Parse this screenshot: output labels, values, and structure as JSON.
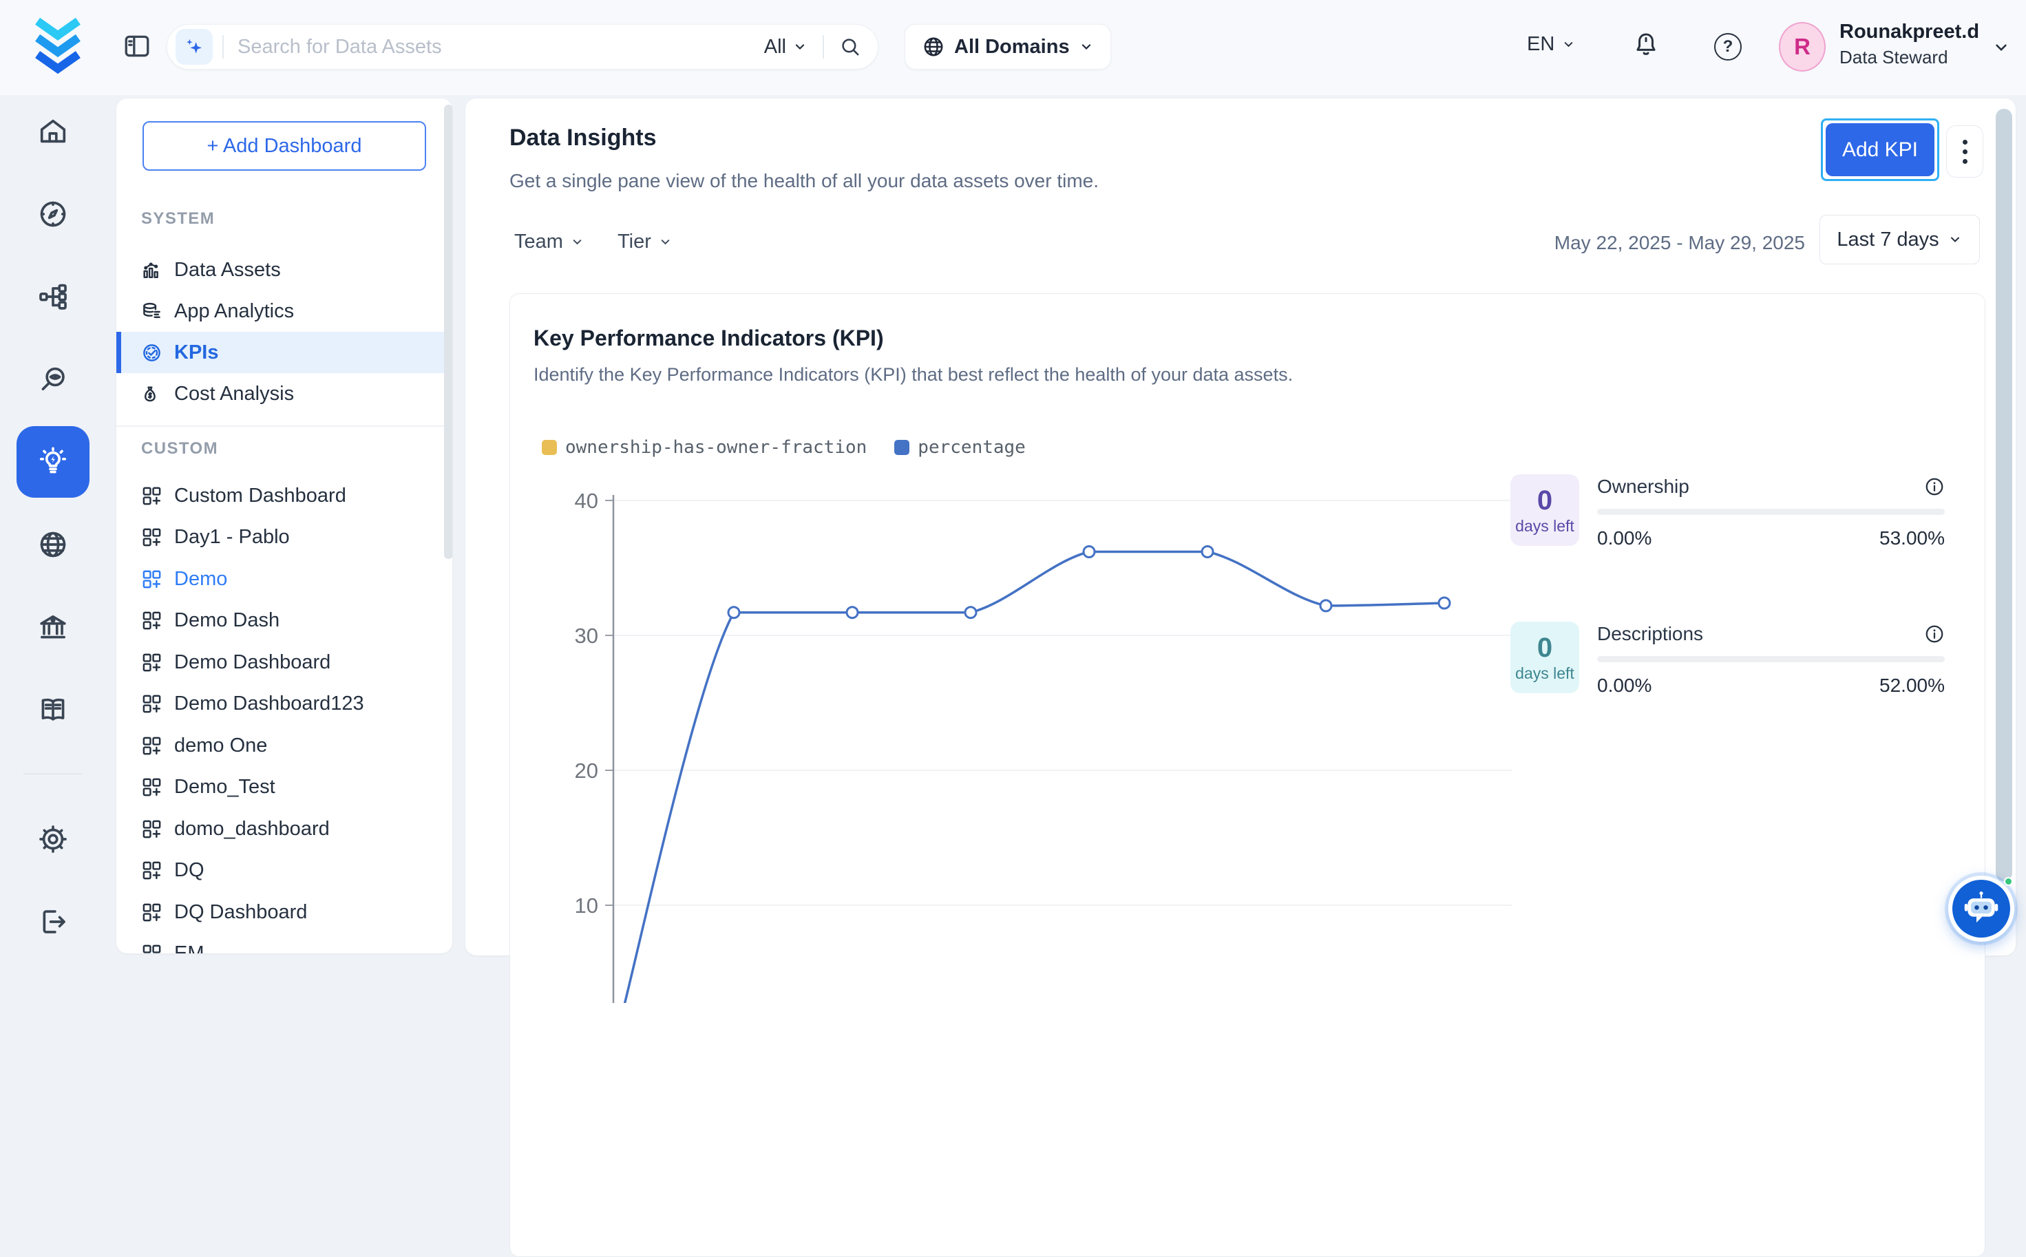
{
  "topbar": {
    "search": {
      "placeholder": "Search for Data Assets",
      "scope_label": "All"
    },
    "domains_button_label": "All Domains",
    "language_label": "EN",
    "help_label": "?",
    "user": {
      "initial": "R",
      "name": "Rounakpreet.d",
      "role": "Data Steward"
    }
  },
  "rail": {
    "top_items": [
      {
        "id": "home",
        "icon": "home-icon"
      },
      {
        "id": "explore",
        "icon": "compass-icon"
      },
      {
        "id": "lineage",
        "icon": "lineage-icon"
      },
      {
        "id": "observability",
        "icon": "observability-icon"
      },
      {
        "id": "insights",
        "icon": "insights-icon",
        "active": true
      },
      {
        "id": "domains",
        "icon": "globe-icon"
      },
      {
        "id": "govern",
        "icon": "bank-icon"
      },
      {
        "id": "learning",
        "icon": "book-icon"
      }
    ],
    "bottom_items": [
      {
        "id": "settings",
        "icon": "gear-icon"
      },
      {
        "id": "logout",
        "icon": "logout-icon"
      }
    ]
  },
  "sidebar": {
    "add_dashboard_label": "+ Add Dashboard",
    "sections": [
      {
        "label": "SYSTEM",
        "items": [
          {
            "label": "Data Assets",
            "icon": "bar-chart-icon"
          },
          {
            "label": "App Analytics",
            "icon": "database-icon"
          },
          {
            "label": "KPIs",
            "icon": "gauge-icon",
            "active": true
          },
          {
            "label": "Cost Analysis",
            "icon": "money-bag-icon"
          }
        ]
      },
      {
        "label": "CUSTOM",
        "items": [
          {
            "label": "Custom Dashboard",
            "icon": "dashboard-grid-icon"
          },
          {
            "label": "Day1 - Pablo",
            "icon": "dashboard-grid-icon"
          },
          {
            "label": "Demo",
            "icon": "dashboard-grid-icon",
            "highlighted": true
          },
          {
            "label": "Demo Dash",
            "icon": "dashboard-grid-icon"
          },
          {
            "label": "Demo Dashboard",
            "icon": "dashboard-grid-icon"
          },
          {
            "label": "Demo Dashboard123",
            "icon": "dashboard-grid-icon"
          },
          {
            "label": "demo One",
            "icon": "dashboard-grid-icon"
          },
          {
            "label": "Demo_Test",
            "icon": "dashboard-grid-icon"
          },
          {
            "label": "domo_dashboard",
            "icon": "dashboard-grid-icon"
          },
          {
            "label": "DQ",
            "icon": "dashboard-grid-icon"
          },
          {
            "label": "DQ Dashboard",
            "icon": "dashboard-grid-icon"
          },
          {
            "label": "EM",
            "icon": "dashboard-grid-icon",
            "clipped": true
          }
        ]
      }
    ]
  },
  "main": {
    "title": "Data Insights",
    "subtitle": "Get a single pane view of the health of all your data assets over time.",
    "add_kpi_label": "Add KPI",
    "filters": {
      "team_label": "Team",
      "tier_label": "Tier",
      "date_range": "May 22, 2025 - May 29, 2025",
      "range_selector_label": "Last 7 days"
    }
  },
  "kpi_card": {
    "title": "Key Performance Indicators (KPI)",
    "subtitle": "Identify the Key Performance Indicators (KPI) that best reflect the health of your data assets."
  },
  "chart_data": {
    "type": "line",
    "x": [
      1,
      2,
      3,
      4,
      5,
      6,
      7,
      8
    ],
    "x_axis_labels_visible": false,
    "series": [
      {
        "name": "ownership-has-owner-fraction",
        "color": "#E9BE54",
        "values": [],
        "line_visible": false
      },
      {
        "name": "percentage",
        "color": "#4472C4",
        "values": [
          0,
          31.7,
          31.7,
          31.7,
          36.2,
          36.2,
          32.2,
          32.4
        ],
        "line_visible": true
      }
    ],
    "y_ticks": [
      10,
      20,
      30,
      40
    ],
    "grid": true,
    "smooth": true,
    "marker": "hollow-circle",
    "legend_position": "top-left"
  },
  "kpi_summaries": [
    {
      "days_left_value": "0",
      "days_left_label": "days left",
      "title": "Ownership",
      "progress_start": "0.00%",
      "progress_target": "53.00%",
      "progress_percent": 0,
      "accent": "#5B49A8",
      "tile_bg": "#F2EDFA"
    },
    {
      "days_left_value": "0",
      "days_left_label": "days left",
      "title": "Descriptions",
      "progress_start": "0.00%",
      "progress_target": "52.00%",
      "progress_percent": 0,
      "accent": "#3E8691",
      "tile_bg": "#E1F6F8"
    }
  ],
  "colors": {
    "primary_blue": "#2D68E8",
    "focus_ring": "#2FB0F5",
    "sidebar_active_bg": "#E6F1FD",
    "legend_yellow": "#E9BE54",
    "legend_blue": "#4472C4",
    "avatar_bg": "#FBD7EA",
    "avatar_text": "#CE2C88",
    "chatbot_blue": "#1160D6"
  }
}
